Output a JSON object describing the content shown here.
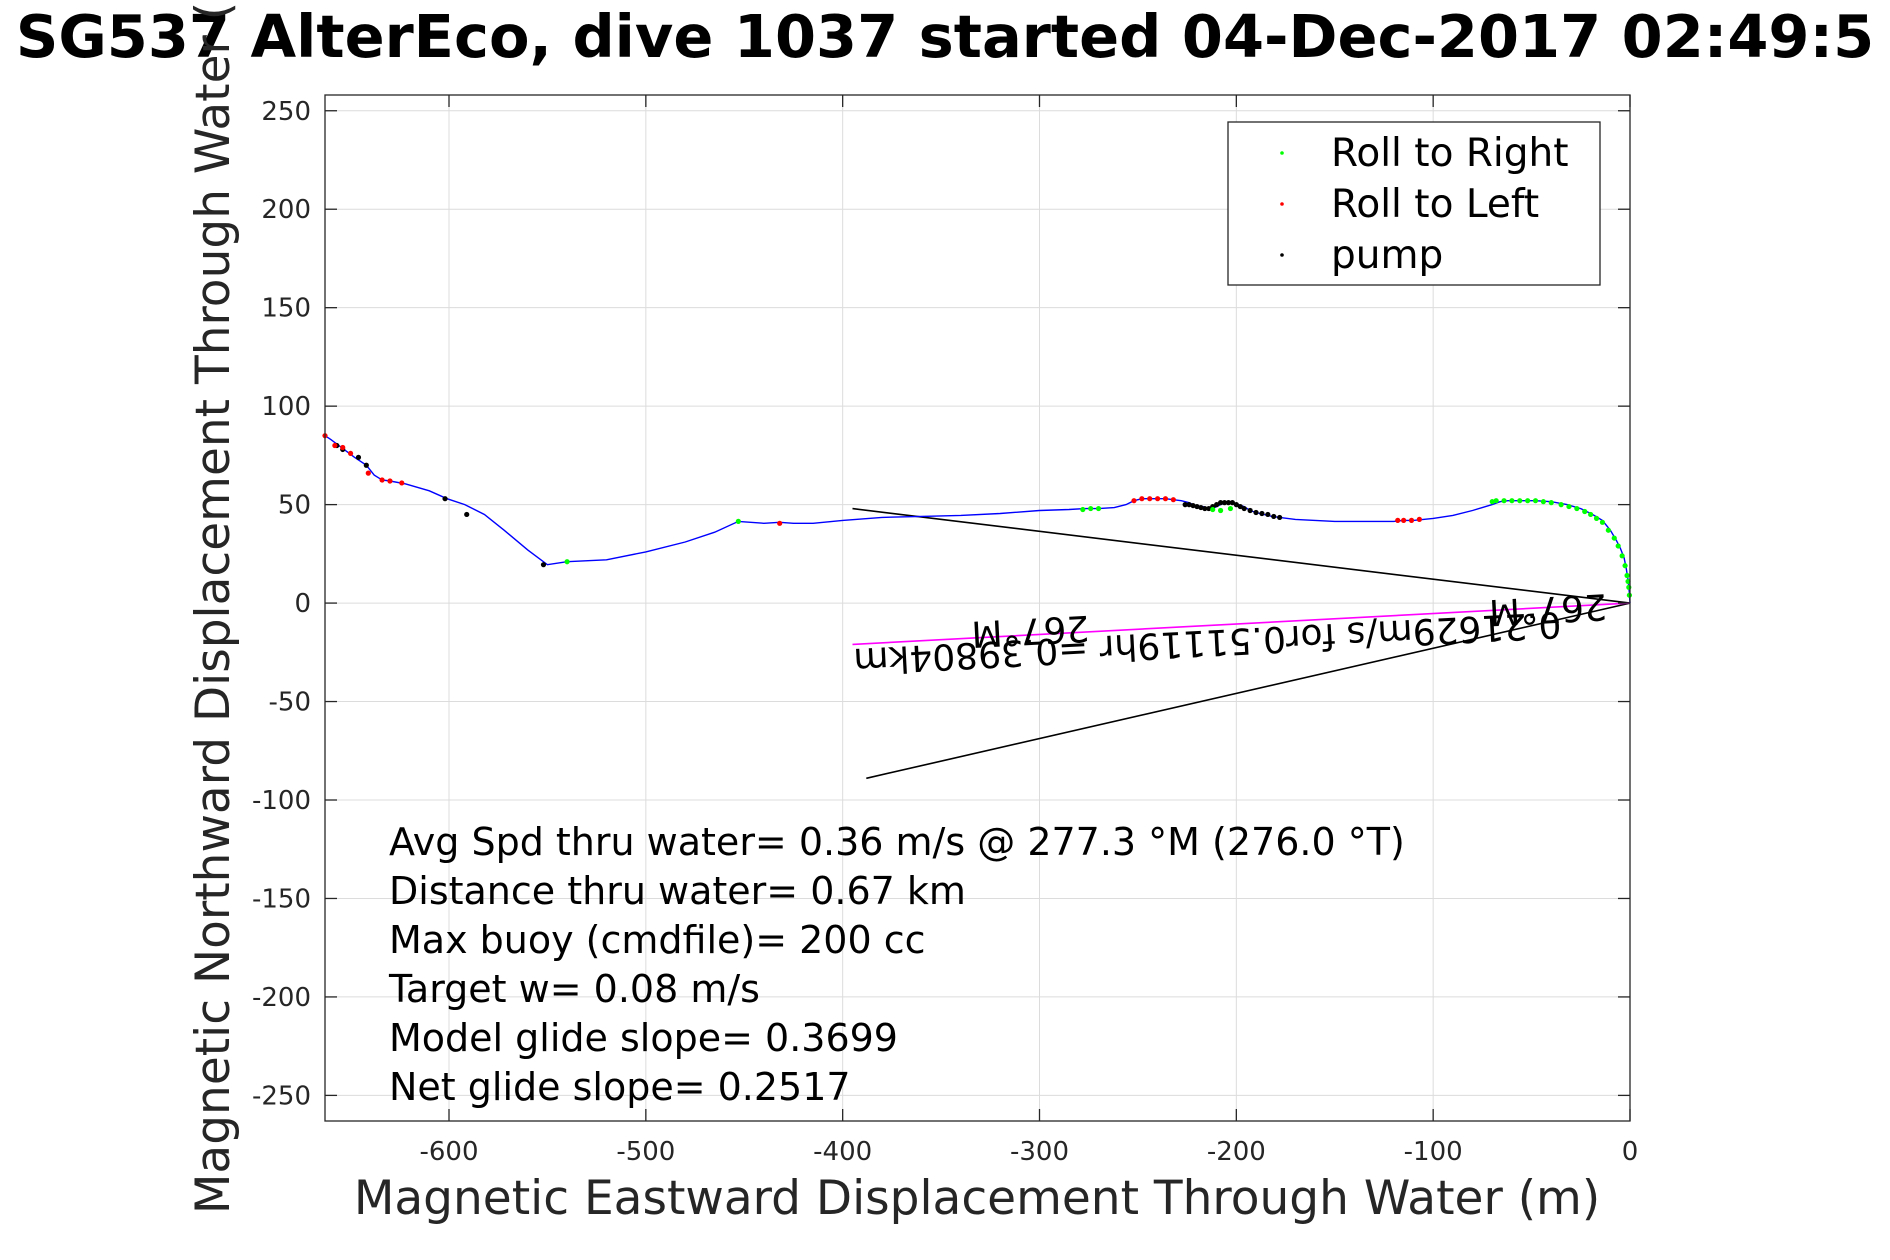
{
  "chart_data": {
    "type": "scatter",
    "title": "SG537 AlterEco, dive 1037 started 04-Dec-2017 02:49:5",
    "xlabel": "Magnetic Eastward Displacement Through Water (m)",
    "ylabel": "Magnetic Northward Displacement Through Water (",
    "xlim": [
      -663,
      0
    ],
    "ylim": [
      -263,
      258
    ],
    "x_ticks": [
      -600,
      -500,
      -400,
      -300,
      -200,
      -100,
      0
    ],
    "y_ticks": [
      250,
      200,
      150,
      100,
      50,
      0,
      -50,
      -100,
      -150,
      -200,
      -250
    ],
    "grid": true,
    "legend": {
      "position": "top-right",
      "entries": [
        {
          "label": "Roll to Right",
          "color": "#00ff00"
        },
        {
          "label": "Roll to Left",
          "color": "#ff0000"
        },
        {
          "label": "pump",
          "color": "#000000"
        }
      ]
    },
    "colors": {
      "track": "#0000ff",
      "current": "#ff00ff",
      "lines": "#000000"
    },
    "track": {
      "x": [
        0,
        -0.4,
        -1,
        -2,
        -3,
        -5,
        -7,
        -10,
        -14,
        -19,
        -25,
        -32,
        -40,
        -48,
        -56,
        -62,
        -66,
        -70,
        -80,
        -90,
        -100,
        -105,
        -110,
        -115,
        -120,
        -130,
        -140,
        -150,
        -160,
        -170,
        -178,
        -182,
        -186,
        -190,
        -193,
        -196,
        -199,
        -202,
        -205,
        -208,
        -211,
        -214,
        -217,
        -221,
        -224,
        -228,
        -232,
        -236,
        -240,
        -244,
        -248,
        -252,
        -256,
        -262,
        -270,
        -277,
        -285,
        -300,
        -320,
        -340,
        -360,
        -380,
        -400,
        -415,
        -425,
        -432,
        -440,
        -453,
        -465,
        -480,
        -500,
        -520,
        -540,
        -550,
        -560,
        -572,
        -582,
        -592,
        -601,
        -610,
        -622,
        -630,
        -634,
        -638,
        -642,
        -648,
        -652,
        -656,
        -660,
        -663
      ],
      "y": [
        0,
        6,
        12,
        18,
        23,
        28,
        32,
        37,
        42,
        45,
        48,
        50,
        51.5,
        52,
        52,
        52,
        51.5,
        50,
        47,
        44.5,
        43,
        42.5,
        42,
        42,
        41.5,
        41.5,
        41.5,
        41.5,
        42,
        42.5,
        43.5,
        44,
        45,
        46,
        47,
        49,
        50,
        51,
        51,
        50,
        48.5,
        48,
        49,
        49.5,
        51,
        52,
        52.5,
        53,
        53,
        53,
        53,
        52,
        50,
        48.5,
        48,
        48,
        47.5,
        47,
        45.5,
        44.5,
        44,
        43.5,
        42,
        40.5,
        40.5,
        41,
        40.5,
        41.5,
        36,
        31,
        26,
        22,
        21,
        19.5,
        27,
        37,
        45,
        50,
        53,
        57,
        60.5,
        62,
        62.5,
        65,
        70,
        74,
        77,
        80,
        83,
        85
      ]
    },
    "roll_right_points": {
      "x": [
        -0.3,
        -0.6,
        -1,
        -1.5,
        -2.5,
        -4,
        -6,
        -8,
        -11,
        -14,
        -17,
        -20,
        -23,
        -27,
        -31,
        -35,
        -40,
        -44,
        -48,
        -52,
        -56,
        -60,
        -64,
        -68,
        -70,
        -203,
        -208,
        -212,
        -270,
        -274,
        -278,
        -453,
        -540
      ],
      "y": [
        4,
        8,
        11,
        14,
        19,
        24,
        29,
        33,
        37,
        41,
        43,
        45,
        46.5,
        48,
        49,
        50,
        51,
        51.5,
        52,
        52,
        52,
        52,
        52,
        52,
        51.5,
        48,
        47,
        47.5,
        48,
        48,
        47.5,
        41.5,
        21
      ]
    },
    "roll_left_points": {
      "x": [
        -107,
        -111,
        -115,
        -118,
        -232,
        -236,
        -240,
        -244,
        -248,
        -252,
        -432,
        -624,
        -630,
        -634,
        -641,
        -650,
        -654,
        -658,
        -663
      ],
      "y": [
        42.5,
        42,
        42,
        42,
        52.5,
        53,
        53,
        53,
        53,
        52,
        40.5,
        61,
        62,
        62.5,
        66,
        76,
        79,
        80,
        85
      ]
    },
    "pump_points": {
      "x": [
        -178,
        -181,
        -184,
        -187,
        -190,
        -193,
        -196,
        -198,
        -200,
        -202,
        -204,
        -206,
        -208,
        -210,
        -212,
        -214,
        -216,
        -218,
        -220,
        -222,
        -224,
        -226,
        -602,
        -591,
        -552,
        -642,
        -646,
        -654,
        -657
      ],
      "y": [
        43.5,
        44,
        45,
        45.5,
        46,
        47,
        48,
        49,
        50,
        51,
        51,
        51,
        51,
        50,
        49,
        48,
        48,
        48.5,
        49,
        49.5,
        50,
        50,
        53,
        45,
        19.5,
        70,
        74,
        78,
        80
      ]
    },
    "current_line": {
      "x": [
        0,
        -395
      ],
      "y": [
        0,
        -21
      ]
    },
    "heading_lines": [
      {
        "x": [
          0,
          -395
        ],
        "y": [
          0,
          48
        ]
      },
      {
        "x": [
          0,
          -388
        ],
        "y": [
          0,
          -89
        ]
      }
    ],
    "rotated_labels": [
      {
        "text": "267°M",
        "x": -42,
        "y": 3
      },
      {
        "text": "0.21629m/s for0.51119hr =0.39804km",
        "x": -215,
        "y": -14
      },
      {
        "text": "267°M",
        "x": -305,
        "y": -8
      }
    ],
    "annotations": [
      "Avg Spd thru water=  0.36 m/s @ 277.3 °M (276.0 °T)",
      "Distance thru water=  0.67 km",
      "Max buoy (cmdfile)= 200 cc",
      "Target w= 0.08 m/s",
      "Model glide slope= 0.3699",
      "Net glide slope= 0.2517"
    ]
  }
}
